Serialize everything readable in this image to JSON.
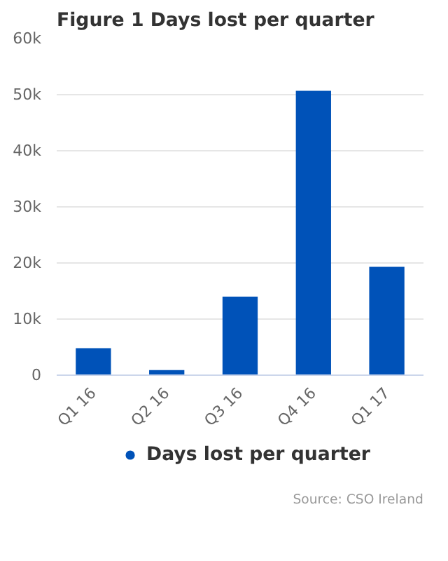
{
  "chart_data": {
    "type": "bar",
    "title": "Figure 1 Days lost per quarter",
    "categories": [
      "Q1 16",
      "Q2 16",
      "Q3 16",
      "Q4 16",
      "Q1 17"
    ],
    "series": [
      {
        "name": "Days lost per quarter",
        "color": "#0052b8",
        "values": [
          4800,
          900,
          14000,
          50700,
          19300
        ]
      }
    ],
    "ylim": [
      0,
      60000
    ],
    "yticks": [
      {
        "value": 0,
        "label": "0"
      },
      {
        "value": 10000,
        "label": "10k"
      },
      {
        "value": 20000,
        "label": "20k"
      },
      {
        "value": 30000,
        "label": "30k"
      },
      {
        "value": 40000,
        "label": "40k"
      },
      {
        "value": 50000,
        "label": "50k"
      },
      {
        "value": 60000,
        "label": "60k"
      }
    ],
    "grid": "y",
    "legend": "bottom",
    "annotations": [
      "Source: CSO Ireland"
    ]
  }
}
